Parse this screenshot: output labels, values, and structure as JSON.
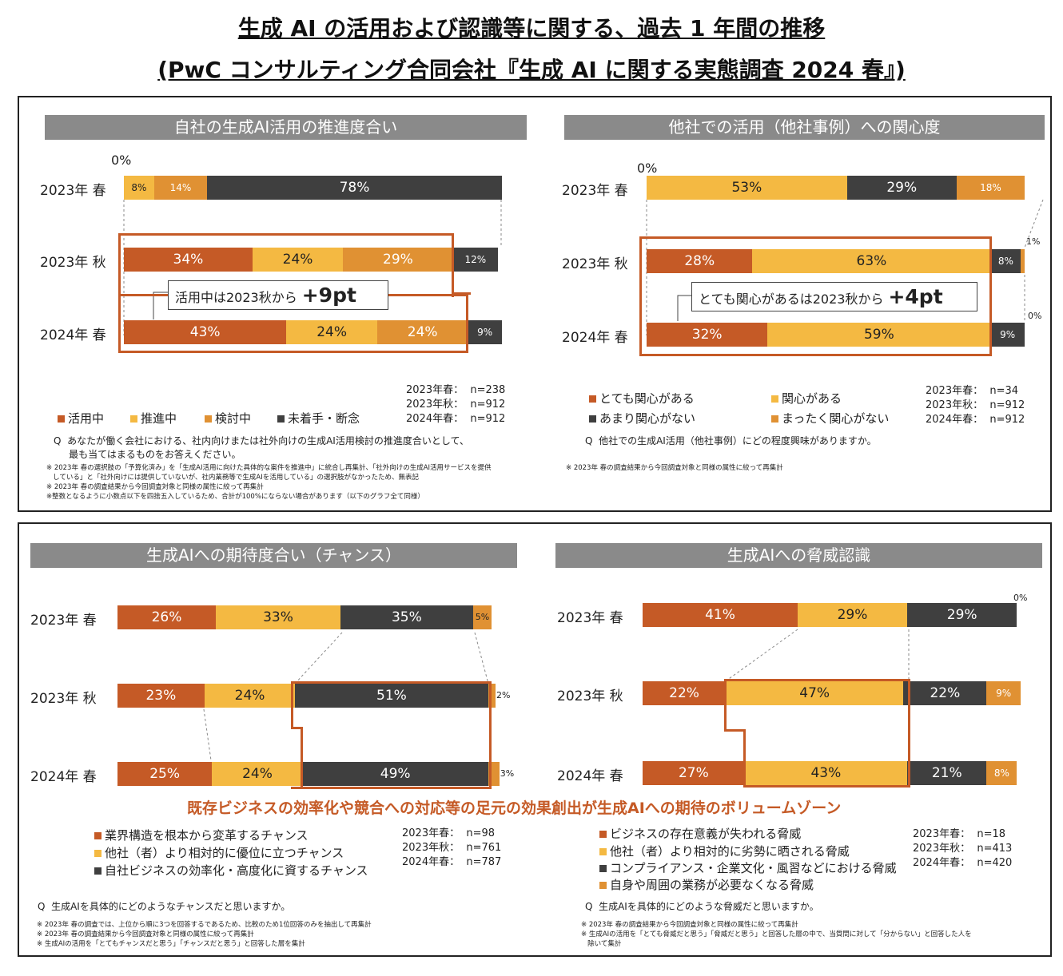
{
  "title": {
    "line1": "生成 AI の活用および認識等に関する、過去 1 年間の推移",
    "line2": "(PwC コンサルティング合同会社『生成 AI に関する実態調査 2024 春』)"
  },
  "colors": {
    "dark_orange": "#c55a26",
    "yellow": "#f4b942",
    "orange": "#e09133",
    "dark": "#3f3f3f",
    "header": "#8a8a8a"
  },
  "panels": [
    {
      "header": "自社の生成AI活用の推進度合い",
      "zero_label": "0%",
      "legend": [
        {
          "label": "活用中",
          "color": "#c55a26"
        },
        {
          "label": "推進中",
          "color": "#f4b942"
        },
        {
          "label": "検討中",
          "color": "#e09133"
        },
        {
          "label": "未着手・断念",
          "color": "#3f3f3f"
        }
      ],
      "n_text": "2023年春：  n=238\n2023年秋：  n=912\n2024年春：  n=912",
      "question": "Q  あなたが働く会社における、社内向けまたは社外向けの生成AI活用検討の推進度合いとして、\n     最も当てはまるものをお答えください。",
      "notes": "※ 2023年 春の選択肢の「予算化済み」を「生成AI活用に向けた具体的な案件を推進中」に統合し再集計、「社外向けの生成AI活用サービスを提供\n   している」と「社外向けには提供していないが、社内業務等で生成AIを活用している」の選択肢がなかったため、無表記\n※ 2023年 春の調査結果から今回調査対象と同様の属性に絞って再集計\n※整数となるように小数点以下を四捨五入しているため、合計が100%にならない場合があります（以下のグラフ全て同様）",
      "callout": {
        "text": "活用中は2023秋から",
        "big": "+9pt"
      }
    },
    {
      "header": "他社での活用（他社事例）への関心度",
      "zero_label": "0%",
      "side_labels": [
        "1%",
        "0%"
      ],
      "legend": [
        {
          "label": "とても関心がある",
          "color": "#c55a26"
        },
        {
          "label": "関心がある",
          "color": "#f4b942"
        },
        {
          "label": "あまり関心がない",
          "color": "#3f3f3f"
        },
        {
          "label": "まったく関心がない",
          "color": "#e09133"
        }
      ],
      "n_text": "2023年春：  n=34\n2023年秋：  n=912\n2024年春：  n=912",
      "question": "Q  他社での生成AI活用（他社事例）にどの程度興味がありますか。",
      "notes": "※ 2023年 春の調査結果から今回調査対象と同様の属性に絞って再集計",
      "callout": {
        "text": "とても関心があるは2023秋から",
        "big": "+4pt"
      }
    },
    {
      "header": "生成AIへの期待度合い（チャンス）",
      "legend": [
        {
          "label": "業界構造を根本から変革するチャンス",
          "color": "#c55a26"
        },
        {
          "label": "他社（者）より相対的に優位に立つチャンス",
          "color": "#f4b942"
        },
        {
          "label": "自社ビジネスの効率化・高度化に資するチャンス",
          "color": "#3f3f3f"
        }
      ],
      "n_text": "2023年春：  n=98\n2023年秋：  n=761\n2024年春：  n=787",
      "question": "Q  生成AIを具体的にどのようなチャンスだと思いますか。",
      "notes": "※ 2023年 春の調査では、上位から順に3つを回答するであるため、比較のため1位回答のみを抽出して再集計\n※ 2023年 春の調査結果から今回調査対象と同様の属性に絞って再集計\n※ 生成AIの活用を「とてもチャンスだと思う」「チャンスだと思う」と回答した層を集計"
    },
    {
      "header": "生成AIへの脅威認識",
      "side_labels": [
        "0%"
      ],
      "legend": [
        {
          "label": "ビジネスの存在意義が失われる脅威",
          "color": "#c55a26"
        },
        {
          "label": "他社（者）より相対的に劣勢に晒される脅威",
          "color": "#f4b942"
        },
        {
          "label": "コンプライアンス・企業文化・風習などにおける脅威",
          "color": "#3f3f3f"
        },
        {
          "label": "自身や周囲の業務が必要なくなる脅威",
          "color": "#e09133"
        }
      ],
      "n_text": "2023年春：  n=18\n2023年秋：  n=413\n2024年春：  n=420",
      "question": "Q  生成AIを具体的にどのような脅威だと思いますか。",
      "notes": "※ 2023年 春の調査結果から今回調査対象と同様の属性に絞って再集計\n※ 生成AIの活用を「とても脅威だと思う」「脅威だと思う」と回答した層の中で、当質問に対して「分からない」と回答した人を\n   除いて集計"
    }
  ],
  "banner": "既存ビジネスの効率化や競合への対応等の足元の効果創出が生成AIへの期待のボリュームゾーン",
  "chart_data": [
    {
      "type": "bar",
      "stacked": true,
      "orientation": "horizontal",
      "title": "自社の生成AI活用の推進度合い",
      "categories": [
        "2023年 春",
        "2023年 秋",
        "2024年 春"
      ],
      "series": [
        {
          "name": "活用中",
          "values": [
            0,
            34,
            43
          ],
          "labels": [
            "",
            "34%",
            "43%"
          ]
        },
        {
          "name": "推進中",
          "values": [
            8,
            24,
            24
          ],
          "labels": [
            "8%",
            "24%",
            "24%"
          ]
        },
        {
          "name": "検討中",
          "values": [
            14,
            29,
            24
          ],
          "labels": [
            "14%",
            "29%",
            "24%"
          ]
        },
        {
          "name": "未着手・断念",
          "values": [
            78,
            12,
            9
          ],
          "labels": [
            "78%",
            "12%",
            "9%"
          ]
        }
      ]
    },
    {
      "type": "bar",
      "stacked": true,
      "orientation": "horizontal",
      "title": "他社での活用（他社事例）への関心度",
      "categories": [
        "2023年 春",
        "2023年 秋",
        "2024年 春"
      ],
      "series": [
        {
          "name": "とても関心がある",
          "values": [
            0,
            28,
            32
          ],
          "labels": [
            "",
            "28%",
            "32%"
          ]
        },
        {
          "name": "関心がある",
          "values": [
            53,
            63,
            59
          ],
          "labels": [
            "53%",
            "63%",
            "59%"
          ]
        },
        {
          "name": "あまり関心がない",
          "values": [
            29,
            8,
            9
          ],
          "labels": [
            "29%",
            "8%",
            "9%"
          ]
        },
        {
          "name": "まったく関心がない",
          "values": [
            18,
            1,
            0
          ],
          "labels": [
            "18%",
            "",
            ""
          ]
        }
      ]
    },
    {
      "type": "bar",
      "stacked": true,
      "orientation": "horizontal",
      "title": "生成AIへの期待度合い（チャンス）",
      "categories": [
        "2023年 春",
        "2023年 秋",
        "2024年 春"
      ],
      "series": [
        {
          "name": "業界構造を根本から変革するチャンス",
          "values": [
            26,
            23,
            25
          ],
          "labels": [
            "26%",
            "23%",
            "25%"
          ]
        },
        {
          "name": "他社（者）より相対的に優位に立つチャンス",
          "values": [
            33,
            24,
            24
          ],
          "labels": [
            "33%",
            "24%",
            "24%"
          ]
        },
        {
          "name": "自社ビジネスの効率化・高度化に資するチャンス",
          "values": [
            35,
            51,
            49
          ],
          "labels": [
            "35%",
            "51%",
            "49%"
          ]
        },
        {
          "name": "",
          "values": [
            5,
            2,
            3
          ],
          "labels": [
            "5%",
            "2%",
            "3%"
          ]
        }
      ]
    },
    {
      "type": "bar",
      "stacked": true,
      "orientation": "horizontal",
      "title": "生成AIへの脅威認識",
      "categories": [
        "2023年 春",
        "2023年 秋",
        "2024年 春"
      ],
      "series": [
        {
          "name": "ビジネスの存在意義が失われる脅威",
          "values": [
            41,
            22,
            27
          ],
          "labels": [
            "41%",
            "22%",
            "27%"
          ]
        },
        {
          "name": "他社（者）より相対的に劣勢に晒される脅威",
          "values": [
            29,
            47,
            43
          ],
          "labels": [
            "29%",
            "47%",
            "43%"
          ]
        },
        {
          "name": "コンプライアンス・企業文化・風習などにおける脅威",
          "values": [
            29,
            22,
            21
          ],
          "labels": [
            "29%",
            "22%",
            "21%"
          ]
        },
        {
          "name": "自身や周囲の業務が必要なくなる脅威",
          "values": [
            0,
            9,
            8
          ],
          "labels": [
            "",
            "9%",
            "8%"
          ]
        }
      ]
    }
  ]
}
